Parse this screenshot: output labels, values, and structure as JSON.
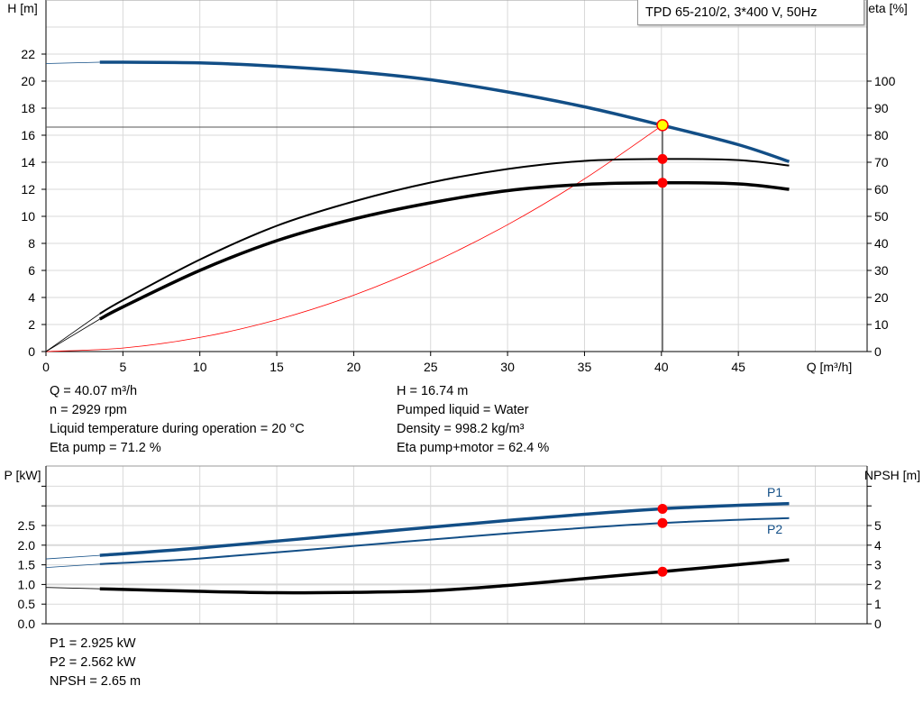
{
  "model_label": "TPD 65-210/2, 3*400 V, 50Hz",
  "info_top": {
    "q": "Q = 40.07 m³/h",
    "h": "H = 16.74 m",
    "n": "n = 2929 rpm",
    "liquid": "Pumped liquid = Water",
    "temp": "Liquid temperature during operation = 20 °C",
    "density": "Density = 998.2 kg/m³",
    "eta_pump": "Eta pump = 71.2 %",
    "eta_total": "Eta pump+motor = 62.4 %"
  },
  "info_bottom": {
    "p1": "P1 = 2.925 kW",
    "p2": "P2 = 2.562 kW",
    "npsh": "NPSH = 2.65 m"
  },
  "colors": {
    "blue": "#124e86",
    "black": "#000000",
    "red": "#ff0000",
    "duty_point": "#ffff00",
    "grid": "#d9d9d9"
  },
  "chart_data": [
    {
      "type": "line",
      "title": "",
      "xlabel": "Q [m³/h]",
      "ylabel": "H [m]",
      "y2label": "eta [%]",
      "xlim": [
        0,
        53
      ],
      "ylim": [
        0,
        26
      ],
      "y2lim": [
        0,
        130
      ],
      "xticks": [
        0,
        5,
        10,
        15,
        20,
        25,
        30,
        35,
        40,
        45
      ],
      "yticks": [
        0,
        2,
        4,
        6,
        8,
        10,
        12,
        14,
        16,
        18,
        20,
        22
      ],
      "y2ticks": [
        0,
        10,
        20,
        30,
        40,
        50,
        60,
        70,
        80,
        90,
        100
      ],
      "grid": true,
      "duty_point": {
        "q": 40.07,
        "h": 16.74,
        "eta_pump": 71.2,
        "eta_total": 62.4
      },
      "series": [
        {
          "key": "H",
          "axis": "left",
          "x": [
            0,
            3.5,
            5,
            10,
            15,
            20,
            25,
            30,
            35,
            40,
            45,
            48.3
          ],
          "y": [
            21.3,
            21.4,
            21.4,
            21.35,
            21.1,
            20.7,
            20.1,
            19.2,
            18.1,
            16.75,
            15.3,
            14.05
          ]
        },
        {
          "key": "eta_pump",
          "axis": "right",
          "x": [
            0,
            3.5,
            5,
            10,
            15,
            20,
            25,
            30,
            35,
            40,
            45,
            48.3
          ],
          "y": [
            0,
            14,
            19,
            34,
            46.5,
            55.5,
            62.5,
            67.5,
            70.5,
            71.2,
            70.8,
            68.8
          ]
        },
        {
          "key": "eta_pump_motor",
          "axis": "right",
          "x": [
            0,
            3.5,
            5,
            10,
            15,
            20,
            25,
            30,
            35,
            40,
            45,
            48.3
          ],
          "y": [
            0,
            12,
            16.5,
            30,
            41,
            49,
            55,
            59.5,
            61.8,
            62.4,
            62,
            60
          ]
        },
        {
          "key": "system_curve",
          "axis": "left",
          "x": [
            0,
            5,
            10,
            15,
            20,
            25,
            30,
            35,
            40.07
          ],
          "y": [
            0,
            0.26,
            1.04,
            2.35,
            4.17,
            6.52,
            9.38,
            12.77,
            16.74
          ]
        }
      ]
    },
    {
      "type": "line",
      "title": "",
      "ylabel": "P [kW]",
      "y2label": "NPSH [m]",
      "xlim": [
        0,
        53
      ],
      "ylim": [
        0,
        4
      ],
      "y2lim": [
        0,
        8
      ],
      "yticks": [
        0.0,
        0.5,
        1.0,
        1.5,
        2.0,
        2.5
      ],
      "y2ticks": [
        0,
        1,
        2,
        3,
        4,
        5
      ],
      "grid": true,
      "series": [
        {
          "name": "P1",
          "axis": "left",
          "x": [
            0,
            3.5,
            10,
            20,
            30,
            40,
            48.3
          ],
          "y": [
            1.65,
            1.74,
            1.93,
            2.28,
            2.63,
            2.925,
            3.06
          ]
        },
        {
          "name": "P2",
          "axis": "left",
          "x": [
            0,
            3.5,
            10,
            20,
            30,
            40,
            48.3
          ],
          "y": [
            1.43,
            1.52,
            1.66,
            1.98,
            2.3,
            2.562,
            2.69
          ]
        },
        {
          "key": "NPSH",
          "axis": "right",
          "x": [
            0,
            3.5,
            10,
            15,
            20,
            25,
            30,
            35,
            40,
            48.3
          ],
          "y": [
            1.85,
            1.78,
            1.65,
            1.58,
            1.6,
            1.68,
            1.95,
            2.3,
            2.65,
            3.25
          ]
        }
      ]
    }
  ]
}
